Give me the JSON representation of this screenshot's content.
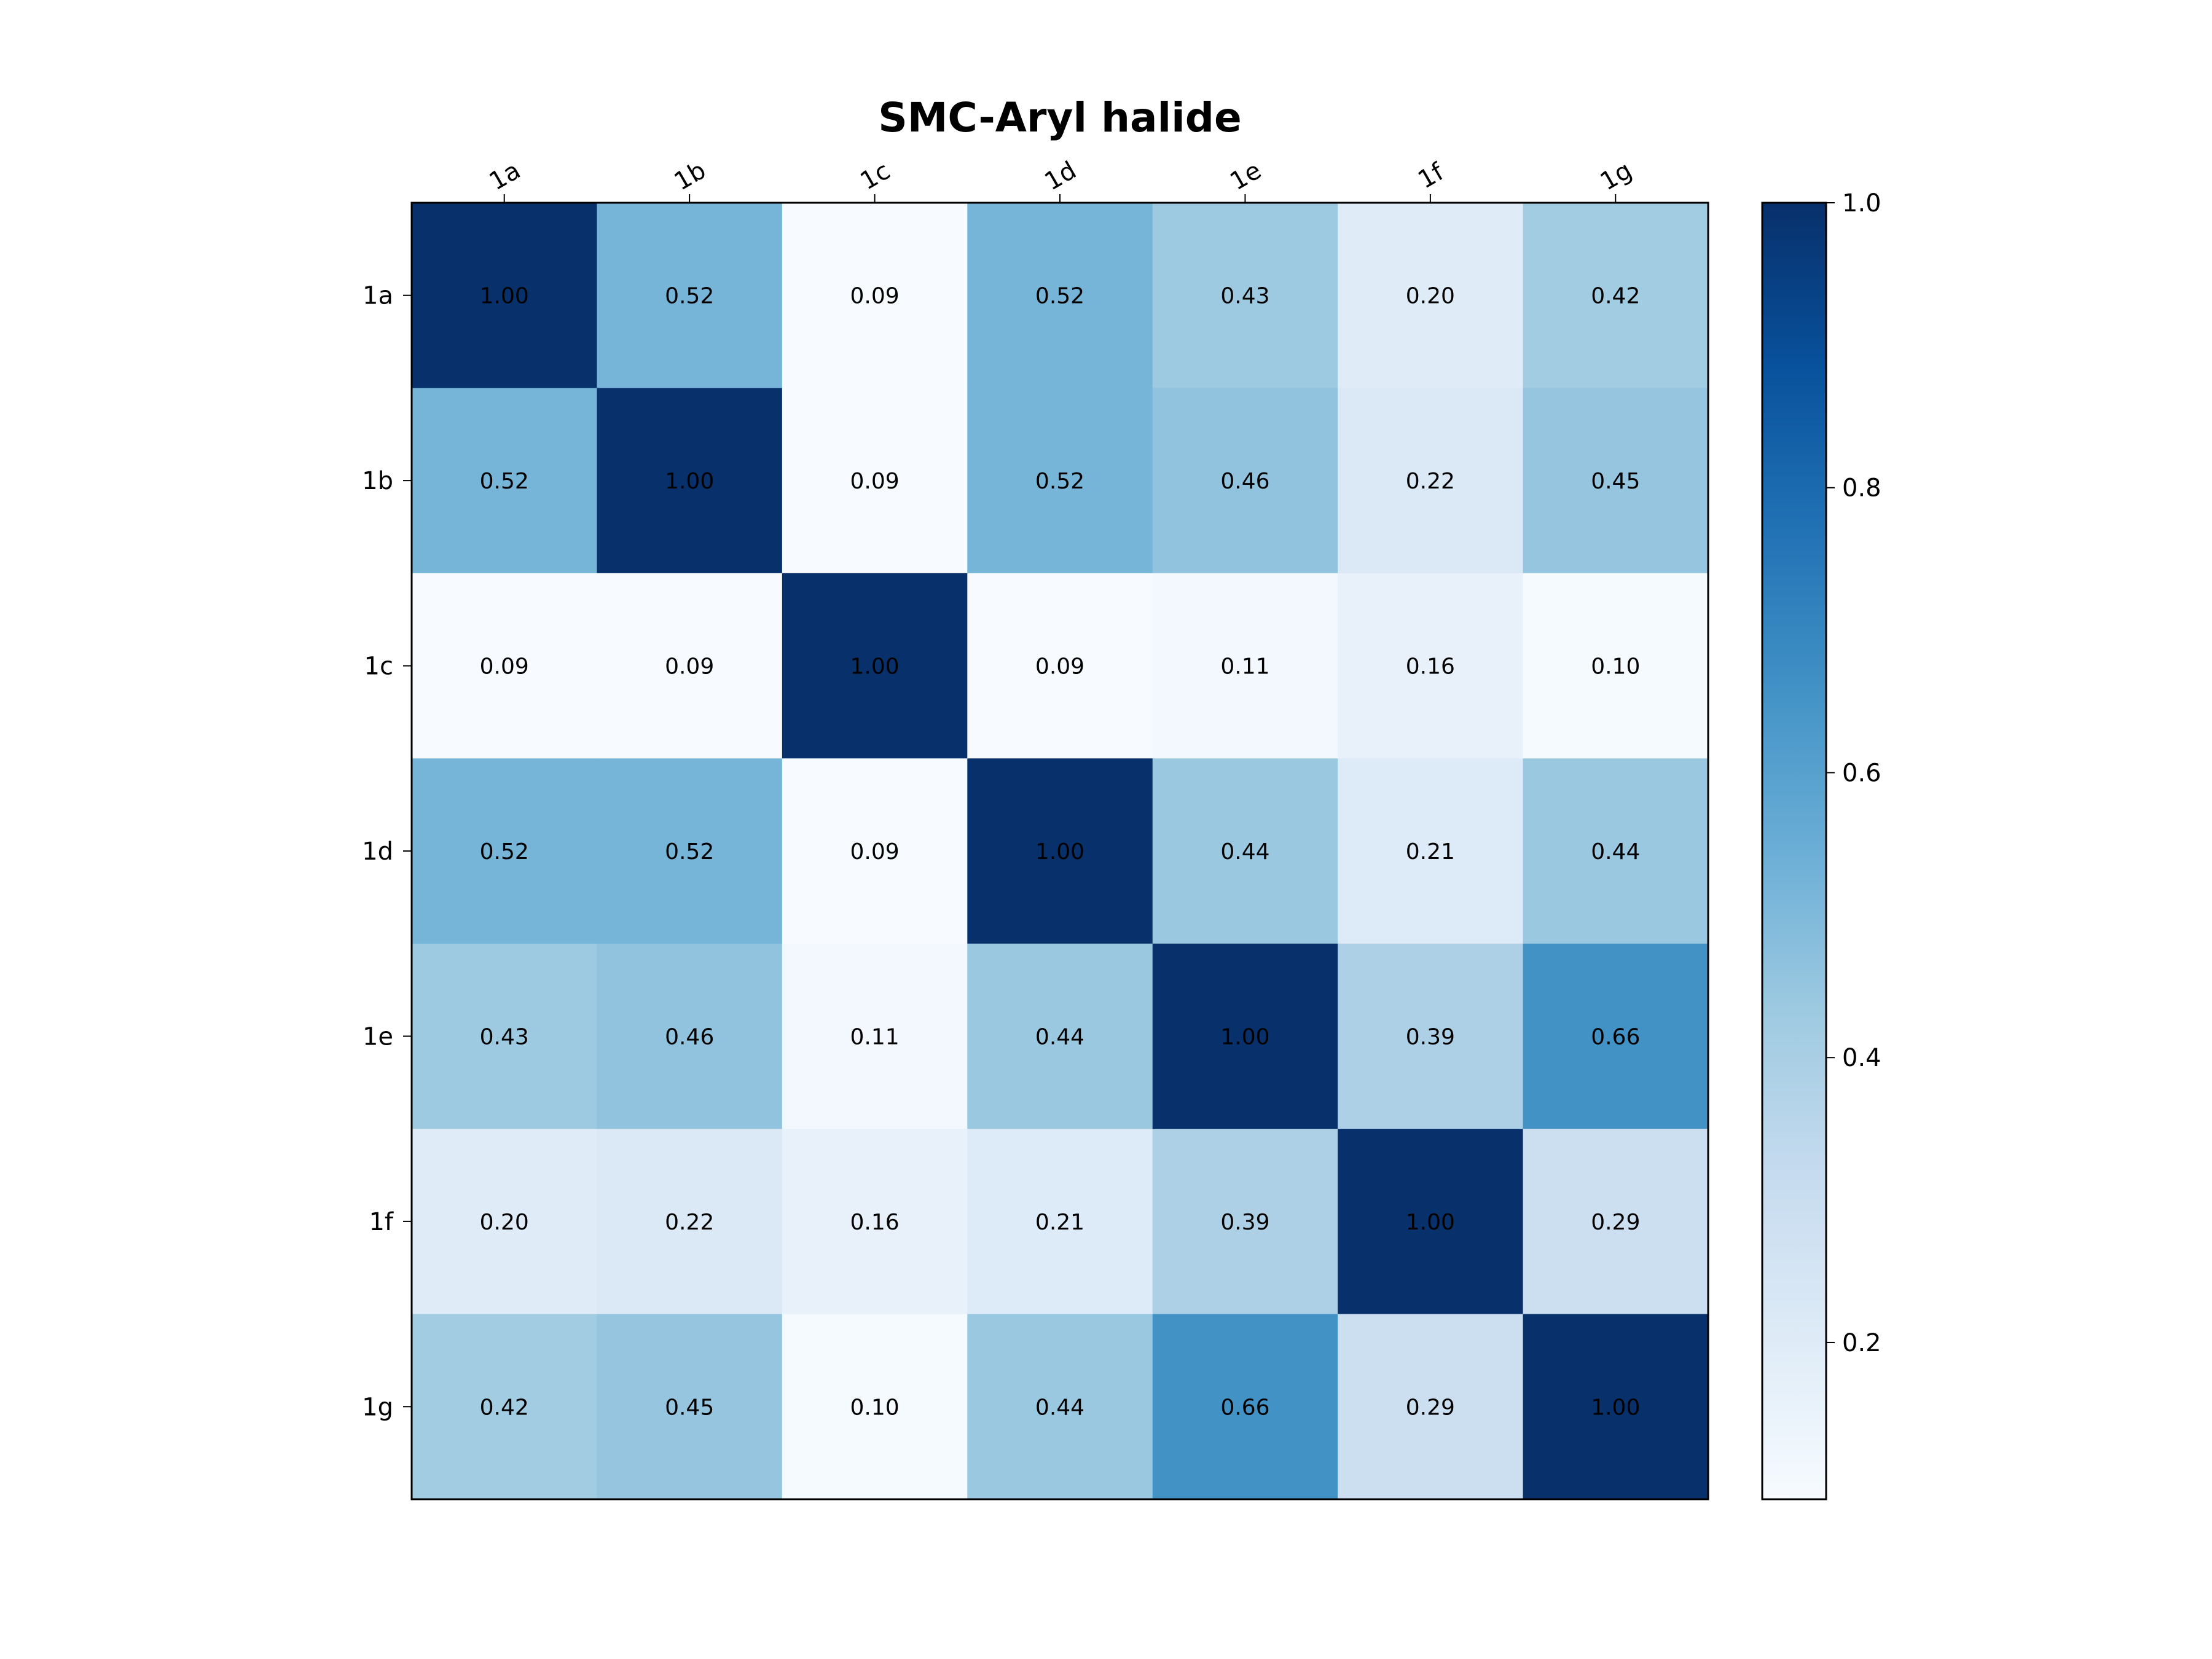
{
  "chart_data": {
    "type": "heatmap",
    "title": "SMC-Aryl halide",
    "x_labels": [
      "1a",
      "1b",
      "1c",
      "1d",
      "1e",
      "1f",
      "1g"
    ],
    "y_labels": [
      "1a",
      "1b",
      "1c",
      "1d",
      "1e",
      "1f",
      "1g"
    ],
    "values": [
      [
        1.0,
        0.52,
        0.09,
        0.52,
        0.43,
        0.2,
        0.42
      ],
      [
        0.52,
        1.0,
        0.09,
        0.52,
        0.46,
        0.22,
        0.45
      ],
      [
        0.09,
        0.09,
        1.0,
        0.09,
        0.11,
        0.16,
        0.1
      ],
      [
        0.52,
        0.52,
        0.09,
        1.0,
        0.44,
        0.21,
        0.44
      ],
      [
        0.43,
        0.46,
        0.11,
        0.44,
        1.0,
        0.39,
        0.66
      ],
      [
        0.2,
        0.22,
        0.16,
        0.21,
        0.39,
        1.0,
        0.29
      ],
      [
        0.42,
        0.45,
        0.1,
        0.44,
        0.66,
        0.29,
        1.0
      ]
    ],
    "value_format": "0.00",
    "colormap": "Blues",
    "color_range": [
      0.09,
      1.0
    ],
    "colorbar": {
      "ticks": [
        0.2,
        0.4,
        0.6,
        0.8,
        1.0
      ],
      "tick_labels": [
        "0.2",
        "0.4",
        "0.6",
        "0.8",
        "1.0"
      ]
    },
    "x_tick_position": "top",
    "grid": false
  }
}
